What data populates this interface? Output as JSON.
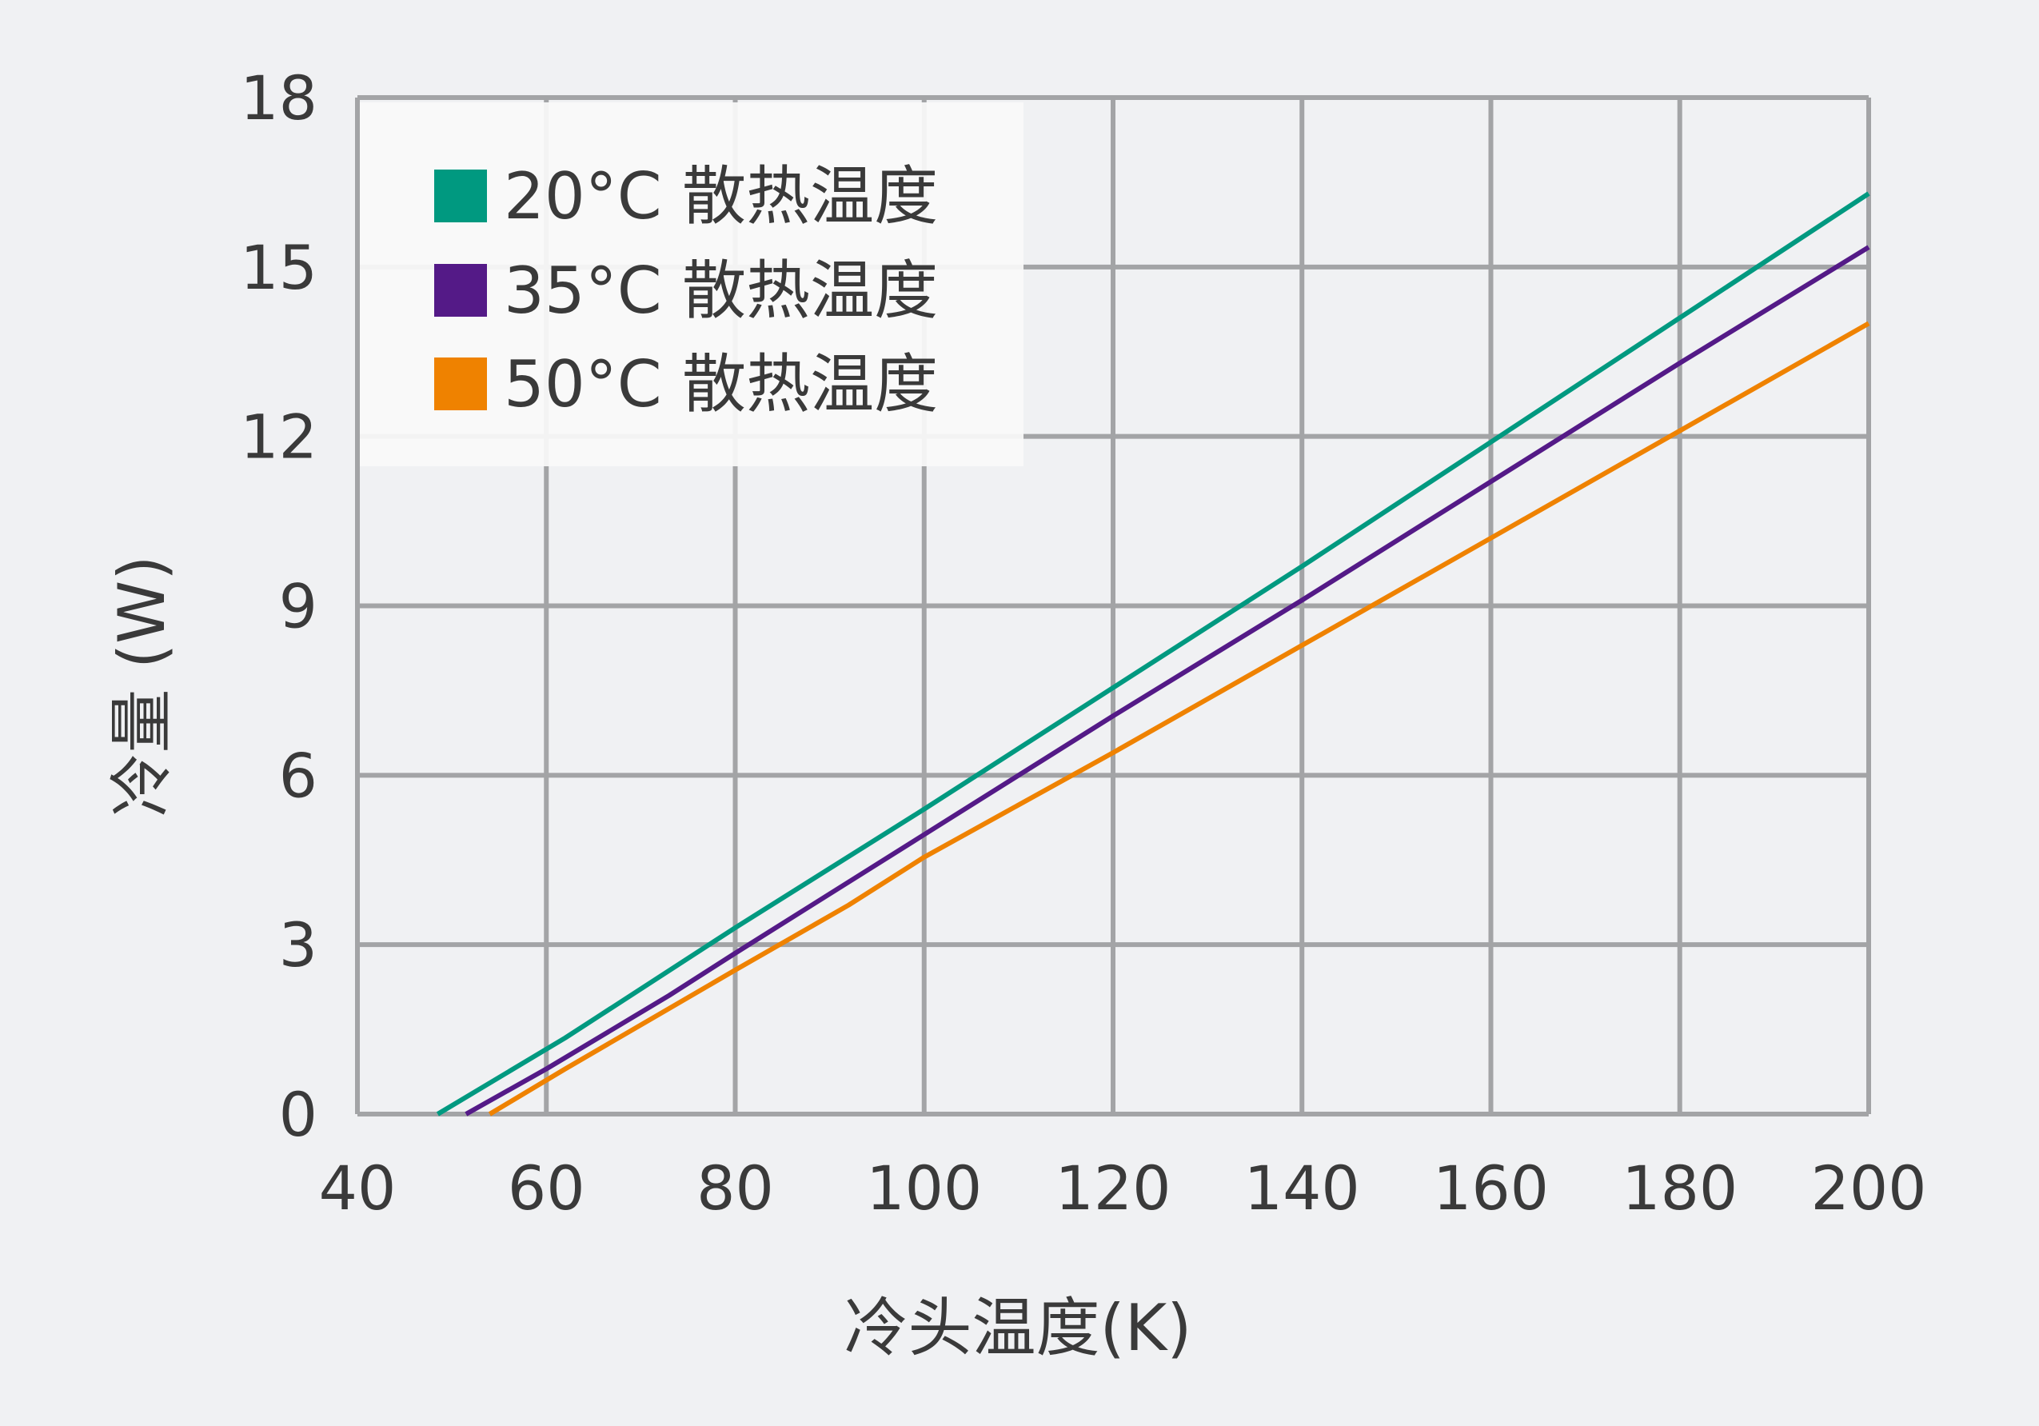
{
  "chart_data": {
    "type": "line",
    "title": "",
    "xlabel": "冷头温度(K)",
    "ylabel": "冷量 (W)",
    "xlim": [
      40,
      200
    ],
    "ylim": [
      0,
      18
    ],
    "xticks": [
      "40",
      "60",
      "80",
      "100",
      "120",
      "140",
      "160",
      "180",
      "200"
    ],
    "yticks": [
      "0",
      "3",
      "6",
      "9",
      "12",
      "15",
      "18"
    ],
    "grid": true,
    "legend_position": "top-left",
    "series": [
      {
        "name": "20°C 散热温度",
        "color": "#009980",
        "points": [
          [
            48.5,
            0
          ],
          [
            62,
            1.35
          ],
          [
            80,
            3.3
          ],
          [
            100,
            5.4
          ],
          [
            120,
            7.55
          ],
          [
            140,
            9.7
          ],
          [
            160,
            11.9
          ],
          [
            180,
            14.1
          ],
          [
            200,
            16.3
          ]
        ]
      },
      {
        "name": "35°C 散热温度",
        "color": "#541a87",
        "points": [
          [
            51.5,
            0
          ],
          [
            60,
            0.8
          ],
          [
            73,
            2.1
          ],
          [
            80,
            2.85
          ],
          [
            100,
            4.95
          ],
          [
            120,
            7.05
          ],
          [
            140,
            9.1
          ],
          [
            160,
            11.2
          ],
          [
            180,
            13.3
          ],
          [
            200,
            15.35
          ]
        ]
      },
      {
        "name": "50°C 散热温度",
        "color": "#ef8200",
        "points": [
          [
            54,
            0
          ],
          [
            62,
            0.8
          ],
          [
            80,
            2.55
          ],
          [
            92,
            3.7
          ],
          [
            100,
            4.55
          ],
          [
            120,
            6.4
          ],
          [
            140,
            8.3
          ],
          [
            160,
            10.2
          ],
          [
            180,
            12.1
          ],
          [
            200,
            14.0
          ]
        ]
      }
    ]
  }
}
